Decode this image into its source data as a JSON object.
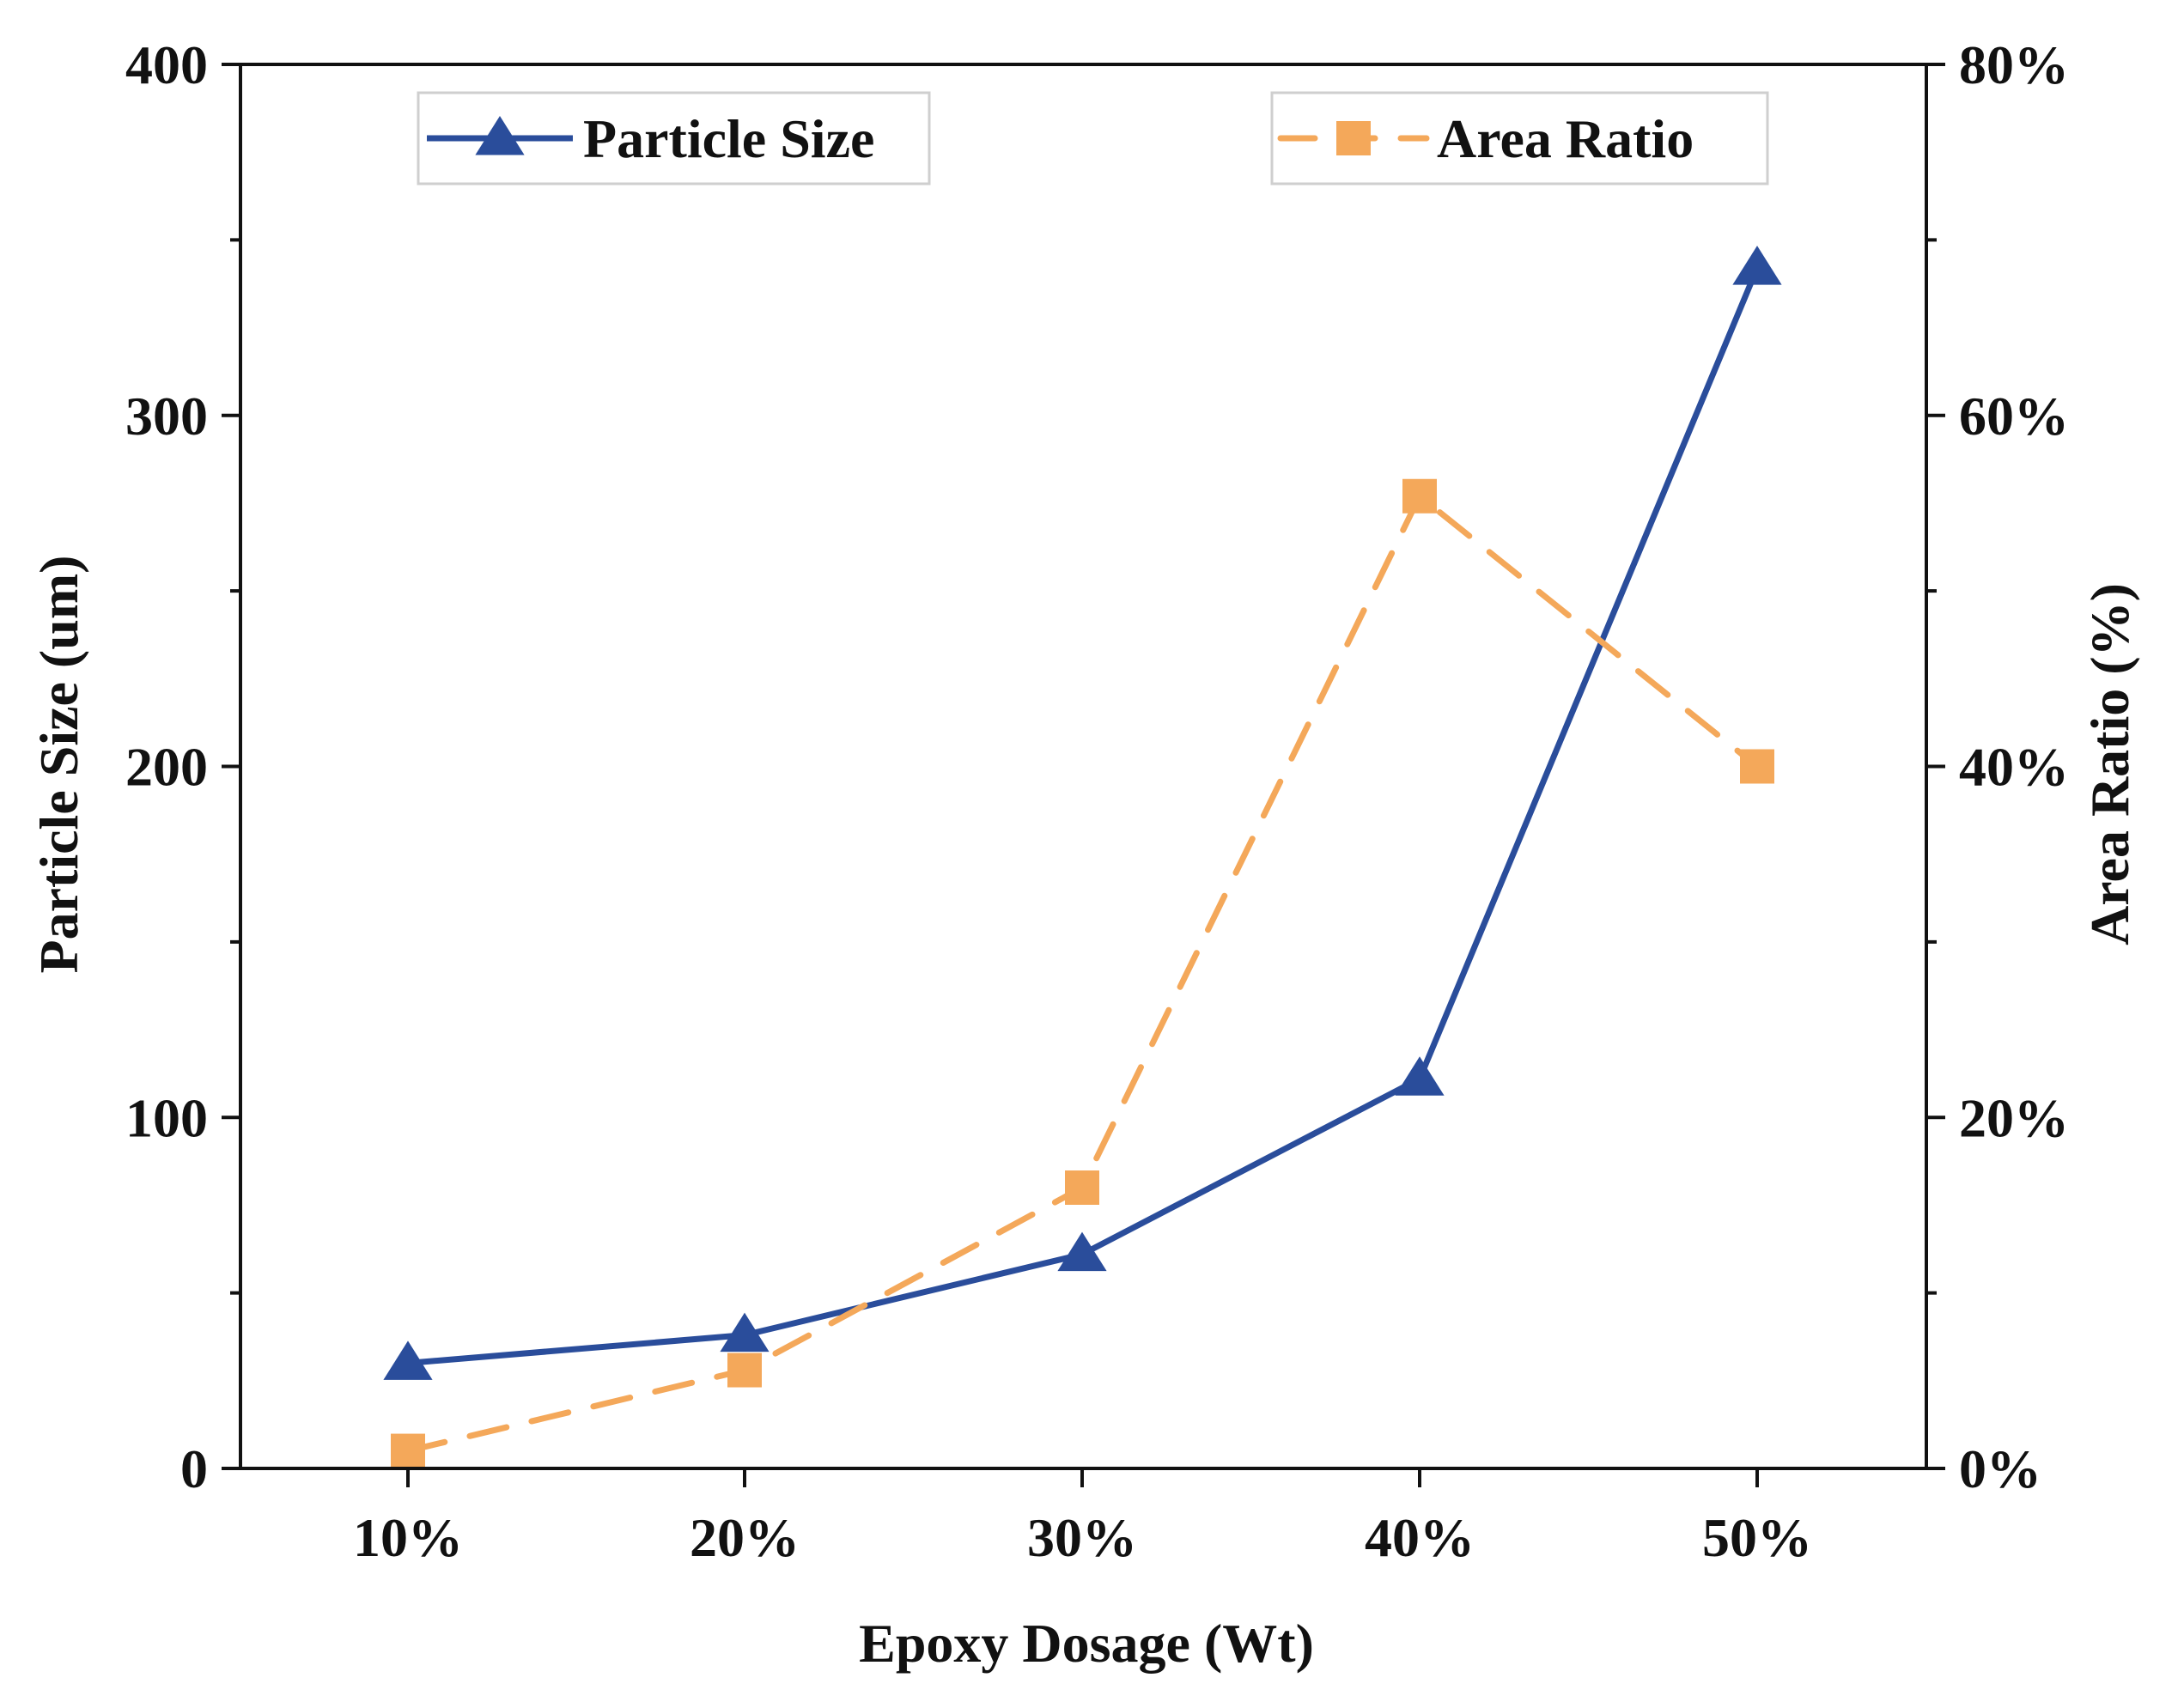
{
  "chart_data": {
    "type": "line",
    "xlabel": "Epoxy Dosage (Wt)",
    "ylabel": "Particle Size (um)",
    "y2label": "Area Ratio (%)",
    "categories": [
      "10%",
      "20%",
      "30%",
      "40%",
      "50%"
    ],
    "ylim": [
      0,
      400
    ],
    "y2lim": [
      0,
      80
    ],
    "yticks": [
      0,
      100,
      200,
      300,
      400
    ],
    "yticklabels": [
      "0",
      "100",
      "200",
      "300",
      "400"
    ],
    "y2ticks": [
      0,
      20,
      40,
      60,
      80
    ],
    "y2ticklabels": [
      "0%",
      "20%",
      "40%",
      "60%",
      "80%"
    ],
    "grid": false,
    "series": [
      {
        "name": "Particle Size",
        "axis": "left",
        "values": [
          30,
          38,
          61,
          111,
          342
        ],
        "color": "#2a4d9b",
        "marker": "triangle",
        "line_style": "solid"
      },
      {
        "name": "Area Ratio",
        "axis": "right",
        "values": [
          1,
          5.6,
          16,
          55.4,
          40
        ],
        "color": "#f4a85a",
        "marker": "square",
        "line_style": "dashed"
      }
    ]
  }
}
